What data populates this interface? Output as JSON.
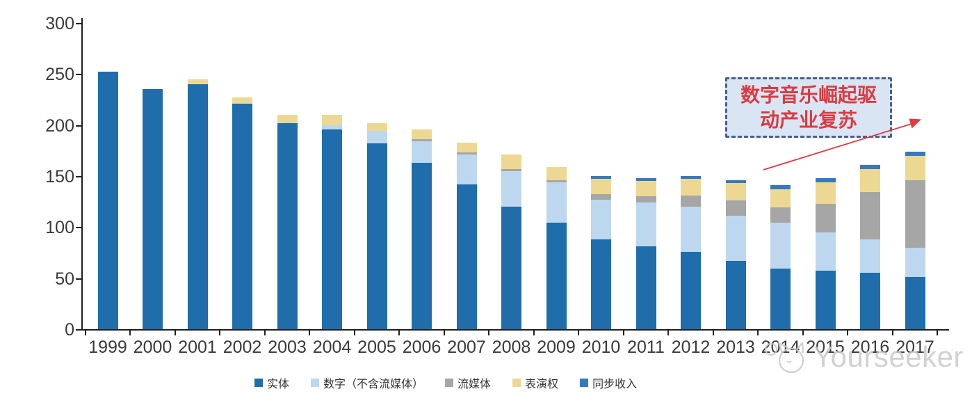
{
  "watermark": {
    "text": "Yourseeker"
  },
  "annotation": {
    "line1": "数字音乐崛起驱",
    "line2": "动产业复苏",
    "full_text": "数字音乐崛起驱动产业复苏"
  },
  "colors": {
    "physical": "#1F6DAB",
    "digital": "#BDD7EE",
    "streaming": "#A6A6A6",
    "performance": "#EDD893",
    "sync": "#3679BE",
    "axis": "#1f1f1f",
    "tick_label": "#3a3a3a",
    "annotation_red": "#DC3A41",
    "callout_border": "#46608F",
    "callout_fill": "#DAE5F3",
    "watermark_gray": "#c9c9c9"
  },
  "chart_data": {
    "type": "bar",
    "stacked": true,
    "title": "",
    "xlabel": "",
    "ylabel": "",
    "ylim": [
      0,
      300
    ],
    "yticks": [
      0,
      50,
      100,
      150,
      200,
      250,
      300
    ],
    "grid": false,
    "legend_position": "bottom",
    "categories": [
      "1999",
      "2000",
      "2001",
      "2002",
      "2003",
      "2004",
      "2005",
      "2006",
      "2007",
      "2008",
      "2009",
      "2010",
      "2011",
      "2012",
      "2013",
      "2014",
      "2015",
      "2016",
      "2017"
    ],
    "series": [
      {
        "key": "physical",
        "name": "实体",
        "values": [
          252,
          235,
          240,
          221,
          202,
          196,
          182,
          163,
          142,
          120,
          104,
          88,
          81,
          76,
          67,
          59,
          57,
          55,
          51
        ]
      },
      {
        "key": "digital",
        "name": "数字（不含流媒体）",
        "values": [
          0,
          0,
          0,
          0,
          0,
          4,
          12,
          21,
          29,
          35,
          40,
          39,
          43,
          44,
          44,
          45,
          38,
          33,
          29
        ]
      },
      {
        "key": "streaming",
        "name": "流媒体",
        "values": [
          0,
          0,
          0,
          0,
          0,
          0,
          0,
          2,
          2,
          2,
          2,
          5,
          6,
          11,
          15,
          15,
          28,
          46,
          66
        ]
      },
      {
        "key": "performance",
        "name": "表演权",
        "values": [
          0,
          0,
          5,
          6,
          8,
          10,
          8,
          10,
          10,
          14,
          13,
          15,
          15,
          16,
          17,
          18,
          21,
          23,
          24
        ]
      },
      {
        "key": "sync",
        "name": "同步收入",
        "values": [
          0,
          0,
          0,
          0,
          0,
          0,
          0,
          0,
          0,
          0,
          0,
          3,
          3,
          3,
          3,
          4,
          4,
          4,
          4
        ]
      }
    ],
    "totals": [
      252,
      235,
      245,
      227,
      210,
      210,
      202,
      196,
      183,
      171,
      159,
      150,
      148,
      150,
      146,
      141,
      148,
      161,
      174
    ]
  }
}
